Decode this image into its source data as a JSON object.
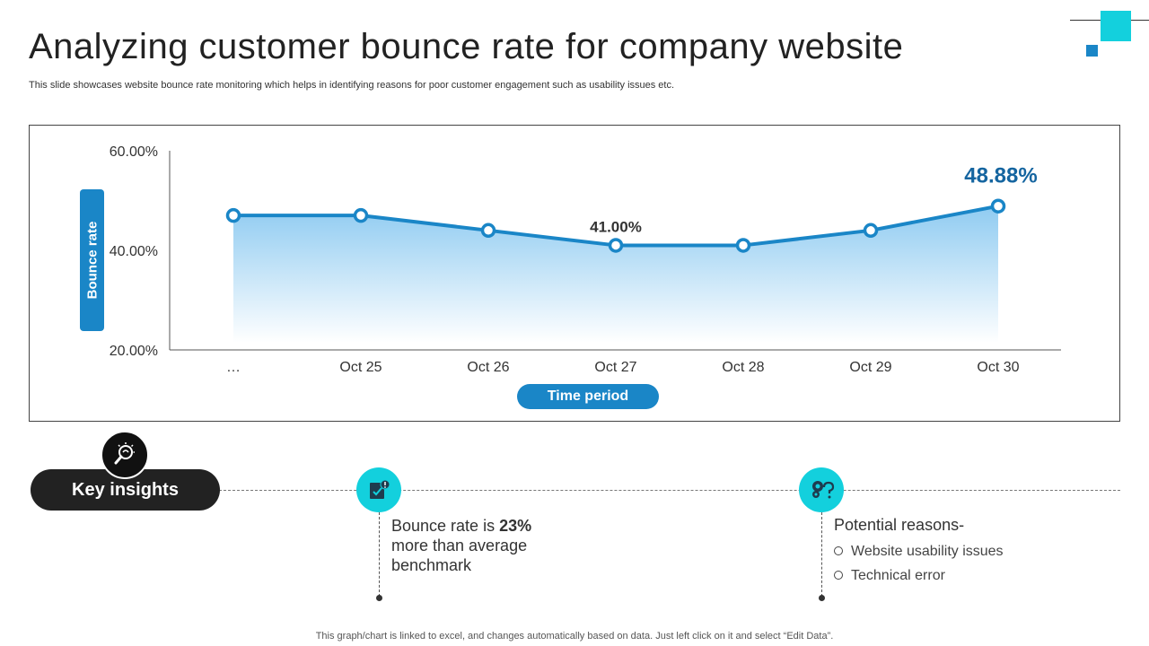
{
  "title": "Analyzing customer bounce rate for company website",
  "subtitle": "This slide showcases website bounce rate monitoring which helps in identifying reasons for poor customer engagement such as usability issues etc.",
  "colors": {
    "accent_blue": "#1a86c7",
    "teal": "#13d0dd",
    "dark": "#222222"
  },
  "chart_data": {
    "type": "area",
    "categories": [
      "…",
      "Oct 25",
      "Oct 26",
      "Oct 27",
      "Oct 28",
      "Oct 29",
      "Oct 30"
    ],
    "series": [
      {
        "values": [
          47.0,
          47.0,
          44.0,
          41.0,
          41.0,
          44.0,
          48.88
        ]
      }
    ],
    "ylim": [
      20,
      60
    ],
    "yticks": [
      "20.00%",
      "40.00%",
      "60.00%"
    ],
    "ylabel": "Bounce rate",
    "xlabel": "Time period",
    "annotations": [
      {
        "category": "Oct 27",
        "text": "41.00%"
      },
      {
        "category": "Oct 30",
        "text": "48.88%"
      }
    ],
    "grid": false,
    "legend": "none"
  },
  "insights": {
    "label": "Key insights",
    "icon": "lightbulb-magnifier-icon",
    "benchmark": {
      "icon": "checklist-alert-icon",
      "prefix": "Bounce rate is",
      "value": "23%",
      "suffix": "more than average benchmark"
    },
    "reasons": {
      "icon": "gears-question-icon",
      "title": "Potential reasons-",
      "items": [
        "Website usability issues",
        "Technical error"
      ]
    }
  },
  "footer": "This graph/chart is linked to excel, and changes automatically based on data. Just left click on it and select “Edit Data”."
}
